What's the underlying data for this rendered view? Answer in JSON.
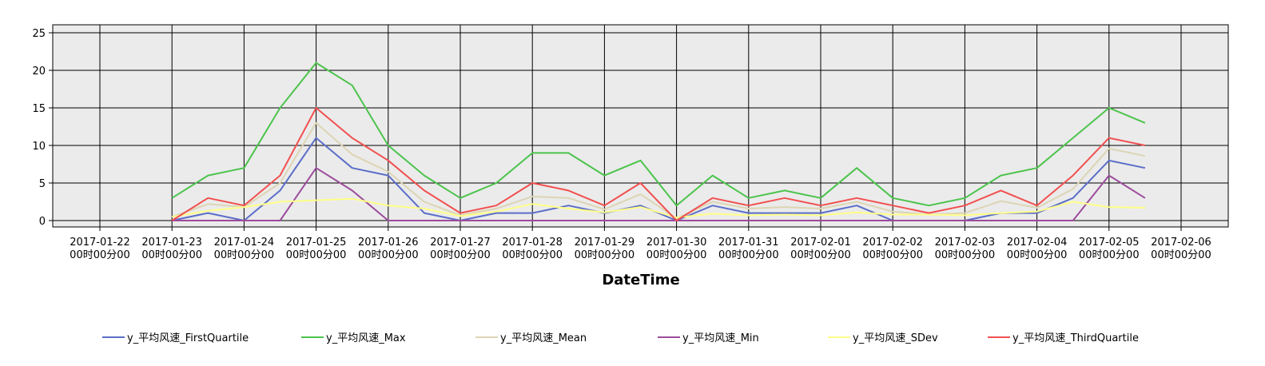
{
  "chart_data": {
    "type": "line",
    "xlabel": "DateTime",
    "ylabel": "",
    "ylim": [
      0,
      26
    ],
    "y_ticks": [
      0,
      5,
      10,
      15,
      20,
      25
    ],
    "grid": true,
    "legend_position": "bottom",
    "x_tick_labels": [
      {
        "line1": "2017-01-22",
        "line2": "00时00分00"
      },
      {
        "line1": "2017-01-23",
        "line2": "00时00分00"
      },
      {
        "line1": "2017-01-24",
        "line2": "00时00分00"
      },
      {
        "line1": "2017-01-25",
        "line2": "00时00分00"
      },
      {
        "line1": "2017-01-26",
        "line2": "00时00分00"
      },
      {
        "line1": "2017-01-27",
        "line2": "00时00分00"
      },
      {
        "line1": "2017-01-28",
        "line2": "00时00分00"
      },
      {
        "line1": "2017-01-29",
        "line2": "00时00分00"
      },
      {
        "line1": "2017-01-30",
        "line2": "00时00分00"
      },
      {
        "line1": "2017-01-31",
        "line2": "00时00分00"
      },
      {
        "line1": "2017-02-01",
        "line2": "00时00分00"
      },
      {
        "line1": "2017-02-02",
        "line2": "00时00分00"
      },
      {
        "line1": "2017-02-03",
        "line2": "00时00分00"
      },
      {
        "line1": "2017-02-04",
        "line2": "00时00分00"
      },
      {
        "line1": "2017-02-05",
        "line2": "00时00分00"
      },
      {
        "line1": "2017-02-06",
        "line2": "00时00分00"
      }
    ],
    "x": [
      "2017-01-23 00:00",
      "2017-01-23 12:00",
      "2017-01-24 00:00",
      "2017-01-24 12:00",
      "2017-01-25 00:00",
      "2017-01-25 12:00",
      "2017-01-26 00:00",
      "2017-01-26 12:00",
      "2017-01-27 00:00",
      "2017-01-27 12:00",
      "2017-01-28 00:00",
      "2017-01-28 12:00",
      "2017-01-29 00:00",
      "2017-01-29 12:00",
      "2017-01-30 00:00",
      "2017-01-30 12:00",
      "2017-01-31 00:00",
      "2017-01-31 12:00",
      "2017-02-01 00:00",
      "2017-02-01 12:00",
      "2017-02-02 00:00",
      "2017-02-02 12:00",
      "2017-02-03 00:00",
      "2017-02-03 12:00",
      "2017-02-04 00:00",
      "2017-02-04 12:00",
      "2017-02-05 00:00",
      "2017-02-05 12:00"
    ],
    "series": [
      {
        "name": "y_平均风速_FirstQuartile",
        "color": "#5b6ec8",
        "values": [
          0,
          1,
          0,
          4,
          11,
          7,
          6,
          1,
          0,
          1,
          1,
          2,
          1,
          2,
          0,
          2,
          1,
          1,
          1,
          2,
          0,
          0,
          0,
          1,
          1,
          3,
          8,
          7
        ]
      },
      {
        "name": "y_平均风速_Max",
        "color": "#4cc44c",
        "values": [
          3,
          6,
          7,
          15,
          21,
          18,
          10,
          6,
          3,
          5,
          9,
          9,
          6,
          8,
          2,
          6,
          3,
          4,
          3,
          7,
          3,
          2,
          3,
          6,
          7,
          11,
          15,
          13
        ]
      },
      {
        "name": "y_平均风速_Mean",
        "color": "#dcd5b4",
        "values": [
          0.5,
          2.2,
          1.8,
          5,
          13,
          8.8,
          6.5,
          2.5,
          0.7,
          1.6,
          3.2,
          3,
          1.5,
          3.5,
          0.3,
          2.5,
          1.6,
          1.8,
          1.6,
          2.5,
          1.2,
          0.8,
          1,
          2.6,
          1.7,
          4.2,
          9.6,
          8.6
        ]
      },
      {
        "name": "y_平均风速_Min",
        "color": "#9c4c9c",
        "values": [
          0,
          0,
          0,
          0,
          7,
          4,
          0,
          0,
          0,
          0,
          0,
          0,
          0,
          0,
          0,
          0,
          0,
          0,
          0,
          0,
          0,
          0,
          0,
          0,
          0,
          0,
          6,
          3
        ]
      },
      {
        "name": "y_平均风速_SDev",
        "color": "#ffff88",
        "values": [
          0.5,
          1.3,
          1.8,
          2.5,
          2.7,
          2.9,
          2,
          1.6,
          0.6,
          1.2,
          2.2,
          1.6,
          1.1,
          1.8,
          0.4,
          0.9,
          0.7,
          0.8,
          0.7,
          1.1,
          0.8,
          0.8,
          0.7,
          1,
          1.2,
          2.5,
          1.8,
          1.7
        ]
      },
      {
        "name": "y_平均风速_ThirdQuartile",
        "color": "#f25050",
        "values": [
          0,
          3,
          2,
          6,
          15,
          11,
          8,
          4,
          1,
          2,
          5,
          4,
          2,
          5,
          0,
          3,
          2,
          3,
          2,
          3,
          2,
          1,
          2,
          4,
          2,
          6,
          11,
          10
        ]
      }
    ]
  }
}
